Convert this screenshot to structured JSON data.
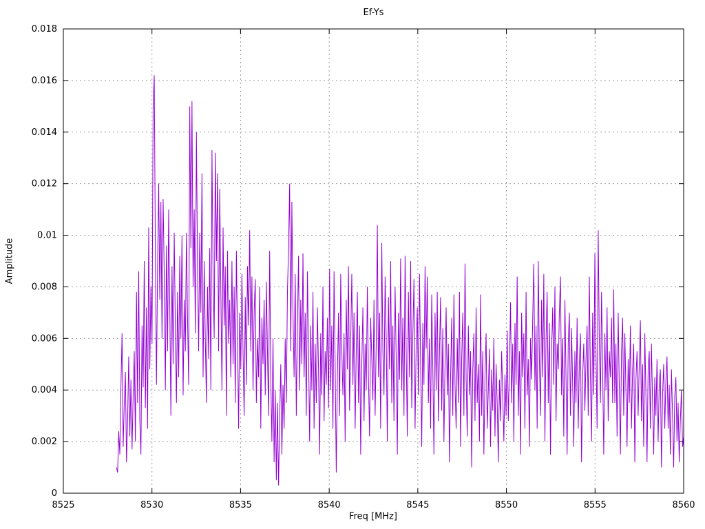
{
  "title": "Ef-Ys",
  "xlabel": "Freq [MHz]",
  "ylabel": "Amplitude",
  "colors": {
    "line": "#9400D3",
    "grid": "#9e9e9e",
    "axis": "#000000",
    "background": "#ffffff"
  },
  "chart_data": {
    "type": "line",
    "title": "Ef-Ys",
    "xlabel": "Freq [MHz]",
    "ylabel": "Amplitude",
    "xlim": [
      8525,
      8560
    ],
    "ylim": [
      0,
      0.018
    ],
    "grid": true,
    "legend": "none",
    "x_tick_values": [
      8525,
      8530,
      8535,
      8540,
      8545,
      8550,
      8555,
      8560
    ],
    "x_tick_labels": [
      "8525",
      "8530",
      "8535",
      "8540",
      "8545",
      "8550",
      "8555",
      "8560"
    ],
    "y_tick_values": [
      0,
      0.002,
      0.004,
      0.006,
      0.008,
      0.01,
      0.012,
      0.014,
      0.016,
      0.018
    ],
    "y_tick_labels": [
      "0",
      "0.002",
      "0.004",
      "0.006",
      "0.008",
      "0.01",
      "0.012",
      "0.014",
      "0.016",
      "0.018"
    ],
    "series": [
      {
        "name": "Ef-Ys",
        "x_start": 8528.0,
        "x_end": 8560.0,
        "y_scale": 0.0001,
        "y_values_x1e4": [
          10,
          8,
          24,
          15,
          42,
          62,
          18,
          35,
          47,
          12,
          28,
          53,
          22,
          44,
          17,
          38,
          55,
          20,
          78,
          35,
          86,
          28,
          15,
          65,
          41,
          90,
          33,
          72,
          25,
          103,
          48,
          80,
          58,
          150,
          162,
          95,
          42,
          88,
          120,
          75,
          113,
          60,
          114,
          85,
          40,
          96,
          55,
          110,
          72,
          30,
          88,
          50,
          101,
          64,
          35,
          78,
          45,
          92,
          60,
          100,
          38,
          75,
          55,
          101,
          68,
          42,
          150,
          95,
          152,
          80,
          110,
          62,
          140,
          88,
          55,
          101,
          70,
          124,
          45,
          90,
          60,
          35,
          80,
          52,
          95,
          40,
          133,
          85,
          60,
          132,
          90,
          124,
          55,
          118,
          78,
          40,
          103,
          65,
          88,
          30,
          94,
          58,
          75,
          45,
          90,
          50,
          80,
          35,
          94,
          62,
          25,
          70,
          48,
          85,
          55,
          30,
          76,
          42,
          88,
          65,
          102,
          55,
          84,
          40,
          70,
          83,
          35,
          60,
          45,
          80,
          25,
          68,
          50,
          75,
          38,
          82,
          55,
          30,
          94,
          45,
          20,
          60,
          12,
          40,
          5,
          35,
          3,
          28,
          50,
          15,
          42,
          25,
          60,
          35,
          78,
          95,
          120,
          55,
          113,
          70,
          45,
          85,
          30,
          65,
          92,
          40,
          75,
          50,
          93,
          45,
          70,
          30,
          86,
          55,
          20,
          65,
          40,
          78,
          25,
          58,
          35,
          72,
          48,
          15,
          62,
          38,
          80,
          28,
          55,
          42,
          68,
          33,
          87,
          40,
          65,
          25,
          86,
          50,
          8,
          45,
          70,
          30,
          85,
          55,
          38,
          62,
          20,
          75,
          48,
          88,
          32,
          60,
          85,
          42,
          70,
          25,
          55,
          78,
          35,
          65,
          15,
          50,
          72,
          28,
          58,
          40,
          80,
          45,
          22,
          68,
          52,
          36,
          75,
          30,
          58,
          104,
          45,
          70,
          25,
          97,
          55,
          38,
          84,
          60,
          20,
          76,
          48,
          90,
          35,
          65,
          28,
          80,
          52,
          15,
          70,
          44,
          91,
          40,
          68,
          30,
          92,
          55,
          22,
          78,
          45,
          90,
          33,
          62,
          83,
          25,
          58,
          72,
          38,
          85,
          50,
          18,
          66,
          42,
          88,
          56,
          84,
          35,
          60,
          25,
          77,
          48,
          15,
          70,
          40,
          78,
          28,
          55,
          76,
          32,
          64,
          20,
          50,
          72,
          38,
          58,
          12,
          45,
          68,
          30,
          77,
          42,
          25,
          60,
          35,
          78,
          18,
          52,
          70,
          30,
          89,
          45,
          22,
          65,
          38,
          55,
          10,
          48,
          62,
          28,
          72,
          35,
          50,
          20,
          77,
          30,
          55,
          15,
          45,
          62,
          25,
          40,
          56,
          18,
          48,
          32,
          60,
          22,
          50,
          35,
          12,
          44,
          28,
          55,
          38,
          20,
          46,
          30,
          63,
          28,
          48,
          74,
          35,
          58,
          20,
          66,
          42,
          84,
          30,
          55,
          15,
          70,
          45,
          62,
          25,
          78,
          38,
          52,
          18,
          60,
          44,
          68,
          89,
          40,
          65,
          25,
          90,
          52,
          30,
          75,
          45,
          85,
          20,
          60,
          78,
          35,
          66,
          15,
          55,
          72,
          42,
          80,
          28,
          58,
          48,
          70,
          84,
          38,
          60,
          22,
          75,
          45,
          15,
          58,
          70,
          30,
          64,
          42,
          18,
          55,
          35,
          68,
          25,
          50,
          62,
          12,
          45,
          58,
          32,
          52,
          65,
          30,
          84,
          45,
          20,
          70,
          38,
          93,
          55,
          25,
          102,
          60,
          35,
          78,
          48,
          15,
          62,
          40,
          72,
          28,
          55,
          45,
          68,
          35,
          79,
          35,
          58,
          22,
          70,
          42,
          15,
          55,
          68,
          30,
          62,
          40,
          18,
          52,
          35,
          65,
          25,
          48,
          58,
          12,
          44,
          55,
          30,
          50,
          67,
          28,
          50,
          18,
          62,
          38,
          12,
          48,
          55,
          25,
          58,
          35,
          15,
          45,
          30,
          52,
          20,
          42,
          48,
          10,
          38,
          50,
          25,
          44,
          53,
          25,
          42,
          15,
          48,
          30,
          10,
          38,
          45,
          20,
          35,
          12,
          28,
          40,
          18,
          22
        ]
      }
    ]
  }
}
